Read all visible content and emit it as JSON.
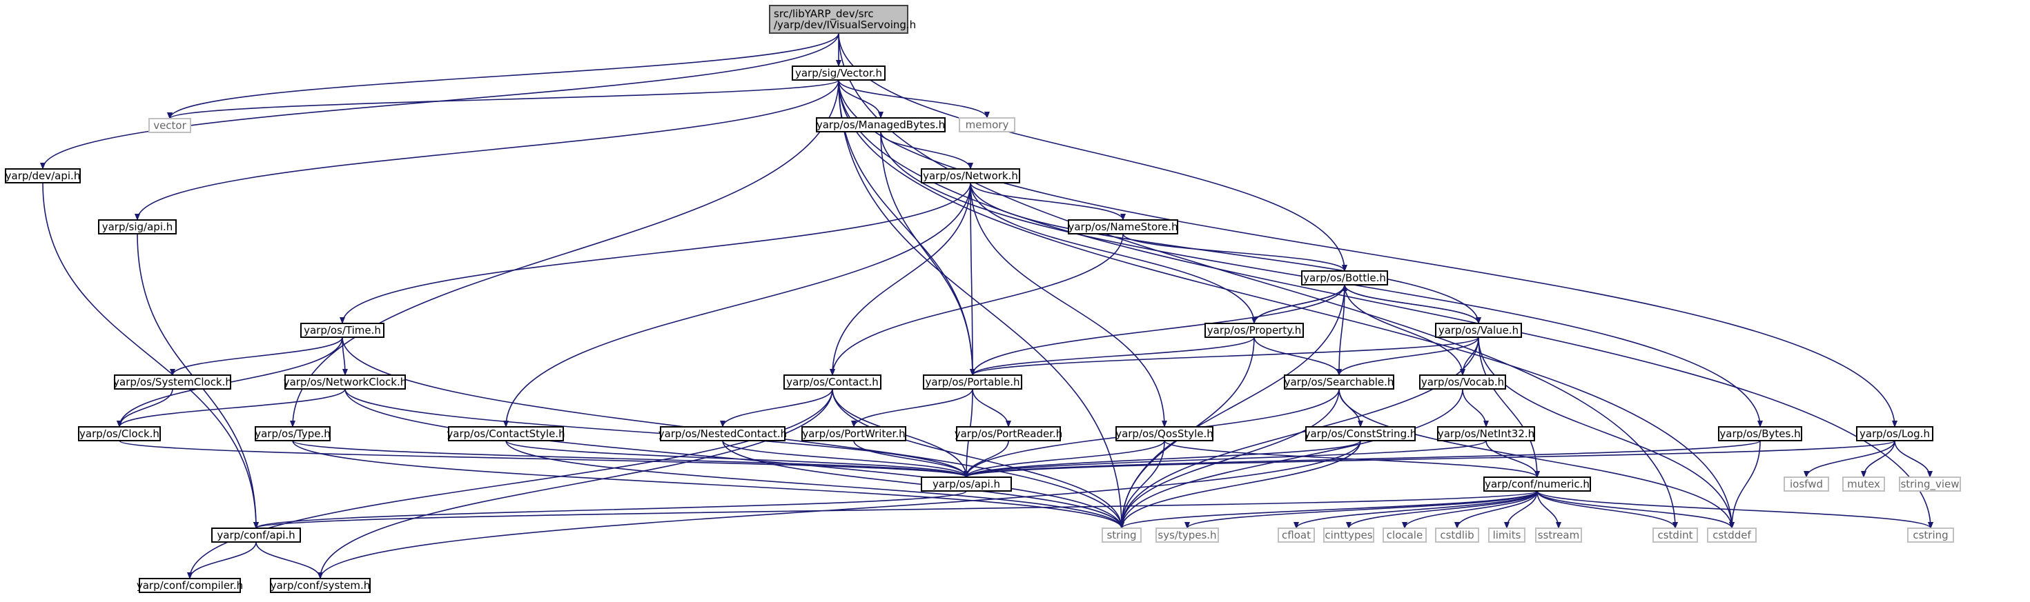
{
  "diagram": {
    "colors": {
      "edge": "#191970",
      "node_border": "#000000",
      "node_fill": "#ffffff",
      "root_fill": "#bfbfbf",
      "root_border": "#404040",
      "external_border": "#bfbfbf",
      "external_text": "#666666",
      "text": "#000000"
    },
    "nodes": [
      {
        "id": "root",
        "lines": [
          "src/libYARP_dev/src",
          "/yarp/dev/IVisualServoing.h"
        ],
        "kind": "root"
      },
      {
        "id": "vector_h",
        "lines": [
          "yarp/sig/Vector.h"
        ],
        "kind": "header"
      },
      {
        "id": "vector",
        "lines": [
          "vector"
        ],
        "kind": "external"
      },
      {
        "id": "dev_api",
        "lines": [
          "yarp/dev/api.h"
        ],
        "kind": "header"
      },
      {
        "id": "sig_api",
        "lines": [
          "yarp/sig/api.h"
        ],
        "kind": "header"
      },
      {
        "id": "managedbytes",
        "lines": [
          "yarp/os/ManagedBytes.h"
        ],
        "kind": "header"
      },
      {
        "id": "memory",
        "lines": [
          "memory"
        ],
        "kind": "external"
      },
      {
        "id": "network",
        "lines": [
          "yarp/os/Network.h"
        ],
        "kind": "header"
      },
      {
        "id": "namestore",
        "lines": [
          "yarp/os/NameStore.h"
        ],
        "kind": "header"
      },
      {
        "id": "bottle",
        "lines": [
          "yarp/os/Bottle.h"
        ],
        "kind": "header"
      },
      {
        "id": "time",
        "lines": [
          "yarp/os/Time.h"
        ],
        "kind": "header"
      },
      {
        "id": "property",
        "lines": [
          "yarp/os/Property.h"
        ],
        "kind": "header"
      },
      {
        "id": "value",
        "lines": [
          "yarp/os/Value.h"
        ],
        "kind": "header"
      },
      {
        "id": "systemclock",
        "lines": [
          "yarp/os/SystemClock.h"
        ],
        "kind": "header"
      },
      {
        "id": "networkclock",
        "lines": [
          "yarp/os/NetworkClock.h"
        ],
        "kind": "header"
      },
      {
        "id": "contact",
        "lines": [
          "yarp/os/Contact.h"
        ],
        "kind": "header"
      },
      {
        "id": "portable",
        "lines": [
          "yarp/os/Portable.h"
        ],
        "kind": "header"
      },
      {
        "id": "searchable",
        "lines": [
          "yarp/os/Searchable.h"
        ],
        "kind": "header"
      },
      {
        "id": "vocab",
        "lines": [
          "yarp/os/Vocab.h"
        ],
        "kind": "header"
      },
      {
        "id": "clock",
        "lines": [
          "yarp/os/Clock.h"
        ],
        "kind": "header"
      },
      {
        "id": "type",
        "lines": [
          "yarp/os/Type.h"
        ],
        "kind": "header"
      },
      {
        "id": "contactstyle",
        "lines": [
          "yarp/os/ContactStyle.h"
        ],
        "kind": "header"
      },
      {
        "id": "nestedcontact",
        "lines": [
          "yarp/os/NestedContact.h"
        ],
        "kind": "header"
      },
      {
        "id": "portwriter",
        "lines": [
          "yarp/os/PortWriter.h"
        ],
        "kind": "header"
      },
      {
        "id": "portreader",
        "lines": [
          "yarp/os/PortReader.h"
        ],
        "kind": "header"
      },
      {
        "id": "qosstyle",
        "lines": [
          "yarp/os/QosStyle.h"
        ],
        "kind": "header"
      },
      {
        "id": "conststring",
        "lines": [
          "yarp/os/ConstString.h"
        ],
        "kind": "header"
      },
      {
        "id": "netint32",
        "lines": [
          "yarp/os/NetInt32.h"
        ],
        "kind": "header"
      },
      {
        "id": "bytes",
        "lines": [
          "yarp/os/Bytes.h"
        ],
        "kind": "header"
      },
      {
        "id": "log",
        "lines": [
          "yarp/os/Log.h"
        ],
        "kind": "header"
      },
      {
        "id": "os_api",
        "lines": [
          "yarp/os/api.h"
        ],
        "kind": "header"
      },
      {
        "id": "numeric",
        "lines": [
          "yarp/conf/numeric.h"
        ],
        "kind": "header"
      },
      {
        "id": "iosfwd",
        "lines": [
          "iosfwd"
        ],
        "kind": "external"
      },
      {
        "id": "mutex",
        "lines": [
          "mutex"
        ],
        "kind": "external"
      },
      {
        "id": "string_view",
        "lines": [
          "string_view"
        ],
        "kind": "external"
      },
      {
        "id": "conf_api",
        "lines": [
          "yarp/conf/api.h"
        ],
        "kind": "header"
      },
      {
        "id": "string",
        "lines": [
          "string"
        ],
        "kind": "external"
      },
      {
        "id": "systypes",
        "lines": [
          "sys/types.h"
        ],
        "kind": "external"
      },
      {
        "id": "cfloat",
        "lines": [
          "cfloat"
        ],
        "kind": "external"
      },
      {
        "id": "cinttypes",
        "lines": [
          "cinttypes"
        ],
        "kind": "external"
      },
      {
        "id": "clocale",
        "lines": [
          "clocale"
        ],
        "kind": "external"
      },
      {
        "id": "cstdlib",
        "lines": [
          "cstdlib"
        ],
        "kind": "external"
      },
      {
        "id": "limits",
        "lines": [
          "limits"
        ],
        "kind": "external"
      },
      {
        "id": "sstream",
        "lines": [
          "sstream"
        ],
        "kind": "external"
      },
      {
        "id": "cstdint",
        "lines": [
          "cstdint"
        ],
        "kind": "external"
      },
      {
        "id": "cstddef",
        "lines": [
          "cstddef"
        ],
        "kind": "external"
      },
      {
        "id": "cstring",
        "lines": [
          "cstring"
        ],
        "kind": "external"
      },
      {
        "id": "compiler",
        "lines": [
          "yarp/conf/compiler.h"
        ],
        "kind": "header"
      },
      {
        "id": "system",
        "lines": [
          "yarp/conf/system.h"
        ],
        "kind": "header"
      }
    ],
    "edges": [
      [
        "root",
        "vector_h"
      ],
      [
        "root",
        "vector"
      ],
      [
        "root",
        "dev_api"
      ],
      [
        "root",
        "bottle"
      ],
      [
        "root",
        "cstdint"
      ],
      [
        "vector_h",
        "vector"
      ],
      [
        "vector_h",
        "memory"
      ],
      [
        "vector_h",
        "managedbytes"
      ],
      [
        "vector_h",
        "sig_api"
      ],
      [
        "vector_h",
        "type"
      ],
      [
        "vector_h",
        "portable"
      ],
      [
        "vector_h",
        "string"
      ],
      [
        "vector_h",
        "log"
      ],
      [
        "vector_h",
        "cstddef"
      ],
      [
        "vector_h",
        "cstring"
      ],
      [
        "dev_api",
        "conf_api"
      ],
      [
        "sig_api",
        "conf_api"
      ],
      [
        "managedbytes",
        "network"
      ],
      [
        "managedbytes",
        "portable"
      ],
      [
        "managedbytes",
        "bytes"
      ],
      [
        "network",
        "time"
      ],
      [
        "network",
        "contactstyle"
      ],
      [
        "network",
        "contact"
      ],
      [
        "network",
        "portable"
      ],
      [
        "network",
        "qosstyle"
      ],
      [
        "network",
        "namestore"
      ],
      [
        "network",
        "property"
      ],
      [
        "network",
        "value"
      ],
      [
        "namestore",
        "contact"
      ],
      [
        "namestore",
        "bottle"
      ],
      [
        "bottle",
        "property"
      ],
      [
        "bottle",
        "portable"
      ],
      [
        "bottle",
        "searchable"
      ],
      [
        "bottle",
        "value"
      ],
      [
        "bottle",
        "vocab"
      ],
      [
        "bottle",
        "string"
      ],
      [
        "time",
        "systemclock"
      ],
      [
        "time",
        "networkclock"
      ],
      [
        "time",
        "clock"
      ],
      [
        "time",
        "string"
      ],
      [
        "property",
        "bottle"
      ],
      [
        "property",
        "portable"
      ],
      [
        "property",
        "searchable"
      ],
      [
        "property",
        "string"
      ],
      [
        "value",
        "bottle"
      ],
      [
        "value",
        "portable"
      ],
      [
        "value",
        "searchable"
      ],
      [
        "value",
        "vocab"
      ],
      [
        "value",
        "string"
      ],
      [
        "value",
        "numeric"
      ],
      [
        "value",
        "cstddef"
      ],
      [
        "systemclock",
        "clock"
      ],
      [
        "networkclock",
        "clock"
      ],
      [
        "networkclock",
        "os_api"
      ],
      [
        "networkclock",
        "string"
      ],
      [
        "contact",
        "nestedcontact"
      ],
      [
        "contact",
        "os_api"
      ],
      [
        "contact",
        "string"
      ],
      [
        "contact",
        "compiler"
      ],
      [
        "contact",
        "system"
      ],
      [
        "portable",
        "portwriter"
      ],
      [
        "portable",
        "portreader"
      ],
      [
        "portable",
        "os_api"
      ],
      [
        "searchable",
        "conststring"
      ],
      [
        "searchable",
        "os_api"
      ],
      [
        "searchable",
        "string"
      ],
      [
        "searchable",
        "cstddef"
      ],
      [
        "vocab",
        "netint32"
      ],
      [
        "vocab",
        "string"
      ],
      [
        "clock",
        "os_api"
      ],
      [
        "type",
        "os_api"
      ],
      [
        "type",
        "string"
      ],
      [
        "contactstyle",
        "os_api"
      ],
      [
        "contactstyle",
        "string"
      ],
      [
        "nestedcontact",
        "os_api"
      ],
      [
        "nestedcontact",
        "string"
      ],
      [
        "portwriter",
        "os_api"
      ],
      [
        "portreader",
        "os_api"
      ],
      [
        "qosstyle",
        "os_api"
      ],
      [
        "qosstyle",
        "string"
      ],
      [
        "qosstyle",
        "numeric"
      ],
      [
        "conststring",
        "os_api"
      ],
      [
        "conststring",
        "string"
      ],
      [
        "conststring",
        "system"
      ],
      [
        "netint32",
        "os_api"
      ],
      [
        "netint32",
        "numeric"
      ],
      [
        "bytes",
        "os_api"
      ],
      [
        "bytes",
        "cstddef"
      ],
      [
        "log",
        "os_api"
      ],
      [
        "log",
        "iosfwd"
      ],
      [
        "log",
        "mutex"
      ],
      [
        "log",
        "string_view"
      ],
      [
        "os_api",
        "conf_api"
      ],
      [
        "numeric",
        "conf_api"
      ],
      [
        "numeric",
        "string"
      ],
      [
        "numeric",
        "systypes"
      ],
      [
        "numeric",
        "cfloat"
      ],
      [
        "numeric",
        "cinttypes"
      ],
      [
        "numeric",
        "clocale"
      ],
      [
        "numeric",
        "cstdlib"
      ],
      [
        "numeric",
        "limits"
      ],
      [
        "numeric",
        "sstream"
      ],
      [
        "numeric",
        "cstdint"
      ],
      [
        "numeric",
        "cstddef"
      ],
      [
        "numeric",
        "cstring"
      ],
      [
        "conf_api",
        "compiler"
      ],
      [
        "conf_api",
        "system"
      ]
    ]
  }
}
